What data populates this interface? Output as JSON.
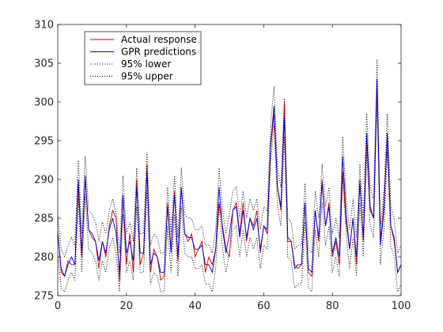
{
  "chart_data": {
    "type": "line",
    "title": "",
    "xlabel": "",
    "ylabel": "",
    "xlim": [
      0,
      100
    ],
    "ylim": [
      275,
      310
    ],
    "xticks": [
      0,
      20,
      40,
      60,
      80,
      100
    ],
    "yticks": [
      275,
      280,
      285,
      290,
      295,
      300,
      305,
      310
    ],
    "grid": false,
    "legend_location": "top-left",
    "x": [
      0,
      1,
      2,
      3,
      4,
      5,
      6,
      7,
      8,
      9,
      10,
      11,
      12,
      13,
      14,
      15,
      16,
      17,
      18,
      19,
      20,
      21,
      22,
      23,
      24,
      25,
      26,
      27,
      28,
      29,
      30,
      31,
      32,
      33,
      34,
      35,
      36,
      37,
      38,
      39,
      40,
      41,
      42,
      43,
      44,
      45,
      46,
      47,
      48,
      49,
      50,
      51,
      52,
      53,
      54,
      55,
      56,
      57,
      58,
      59,
      60,
      61,
      62,
      63,
      64,
      65,
      66,
      67,
      68,
      69,
      70,
      71,
      72,
      73,
      74,
      75,
      76,
      77,
      78,
      79,
      80,
      81,
      82,
      83,
      84,
      85,
      86,
      87,
      88,
      89,
      90,
      91,
      92,
      93,
      94,
      95,
      96,
      97,
      98,
      99,
      100
    ],
    "series": [
      {
        "name": "Actual response",
        "color": "#cc0000",
        "style": "solid",
        "values": [
          283.5,
          278,
          277.5,
          279.5,
          279,
          279,
          289,
          280,
          290,
          283.5,
          282.5,
          282,
          278.5,
          282,
          280,
          284,
          286,
          285,
          276.8,
          288,
          279,
          283,
          278,
          290,
          279,
          280.5,
          292,
          278,
          281,
          280,
          277,
          277.5,
          287,
          281,
          288.5,
          279.5,
          289,
          283,
          282,
          283,
          280,
          281,
          282,
          278,
          280,
          279,
          281,
          287,
          284,
          281,
          280,
          286,
          287,
          283,
          287,
          282,
          285,
          284,
          286,
          280.5,
          284,
          283,
          294,
          298.5,
          289,
          286,
          300,
          282,
          282,
          279,
          278.5,
          279,
          287,
          278,
          277.5,
          286,
          282,
          290,
          284,
          287,
          280,
          282,
          279,
          291,
          284.5,
          281,
          285,
          279,
          290,
          282,
          295,
          286,
          285,
          302,
          282,
          287,
          295,
          284,
          282,
          278,
          279
        ]
      },
      {
        "name": "GPR predictions",
        "color": "#0000cc",
        "style": "solid",
        "values": [
          283,
          278.5,
          277.5,
          279,
          280,
          279,
          290,
          280.5,
          290.5,
          283.5,
          283,
          282,
          279.5,
          282,
          280.5,
          283.5,
          285,
          283,
          278,
          288,
          280.5,
          282,
          279.5,
          289,
          280.5,
          280.5,
          291,
          279,
          280.5,
          280,
          278,
          278,
          286.5,
          280.5,
          288,
          280,
          289,
          283,
          282.5,
          282.5,
          281,
          281,
          281.5,
          279,
          279,
          278,
          281,
          289,
          283.5,
          280.5,
          283,
          286,
          286.5,
          282.5,
          286,
          282.5,
          285,
          283.5,
          285,
          281,
          284,
          283.5,
          294.5,
          299.5,
          289,
          286.5,
          298,
          282.5,
          282,
          278.5,
          279,
          279,
          287,
          278.5,
          278,
          286,
          282.5,
          289.5,
          284,
          286.5,
          280.5,
          282.5,
          280,
          293,
          285.5,
          281,
          285,
          280,
          289.5,
          282.5,
          296,
          286.5,
          285,
          303,
          281.5,
          286,
          296,
          284,
          282.5,
          278,
          279
        ]
      },
      {
        "name": "95% lower",
        "color": "#000000",
        "style": "dotted",
        "values": [
          280.5,
          276,
          275.5,
          277,
          278,
          277,
          287.5,
          278,
          288,
          281,
          280.5,
          279.5,
          277,
          279.5,
          278,
          281,
          282.5,
          280.5,
          275.5,
          285.5,
          278,
          279.5,
          277,
          286.5,
          278,
          278,
          288.5,
          276.5,
          278,
          277.5,
          275.5,
          275.5,
          284,
          278,
          285.5,
          277.5,
          286.5,
          280.5,
          280,
          280,
          278.5,
          278.5,
          279,
          276.5,
          276.5,
          275.5,
          278.5,
          286.5,
          281,
          278,
          280.5,
          283.5,
          284,
          280,
          283.5,
          280,
          282.5,
          281,
          282.5,
          278.5,
          281.5,
          281,
          292,
          297,
          286.5,
          284,
          295.5,
          280,
          279.5,
          276,
          276.5,
          276.5,
          284.5,
          276,
          275.5,
          283.5,
          280,
          287,
          281.5,
          284,
          278,
          280,
          277.5,
          290.5,
          283,
          278.5,
          282.5,
          277.5,
          287,
          280,
          293.5,
          284,
          282.5,
          300.5,
          279,
          283.5,
          293.5,
          281.5,
          280,
          275.5,
          276.5
        ]
      },
      {
        "name": "95% upper",
        "color": "#000000",
        "style": "dotted",
        "values": [
          285.5,
          281,
          280,
          281.5,
          282.5,
          281.5,
          292.5,
          283,
          293,
          286,
          285.5,
          284.5,
          282,
          284.5,
          283,
          286,
          287.5,
          285.5,
          280.5,
          290.5,
          283,
          284.5,
          282,
          291.5,
          283,
          283,
          293.5,
          281.5,
          283,
          282.5,
          280.5,
          280.5,
          289,
          283,
          290.5,
          282.5,
          291.5,
          285.5,
          285,
          285,
          283.5,
          283.5,
          284,
          281.5,
          281.5,
          280.5,
          283.5,
          291.5,
          286,
          283,
          285.5,
          288.5,
          289,
          285,
          288.5,
          285,
          287.5,
          286,
          287.5,
          283.5,
          286.5,
          286,
          297,
          302,
          291.5,
          289,
          300.5,
          285,
          284.5,
          281,
          281.5,
          281.5,
          289.5,
          281,
          280.5,
          288.5,
          285,
          292,
          286.5,
          289,
          283,
          285,
          282.5,
          295.5,
          288,
          283.5,
          287.5,
          282.5,
          292,
          285,
          298.5,
          289,
          287.5,
          305.5,
          284,
          288.5,
          298.5,
          286.5,
          285,
          280.5,
          281.5
        ]
      }
    ]
  }
}
